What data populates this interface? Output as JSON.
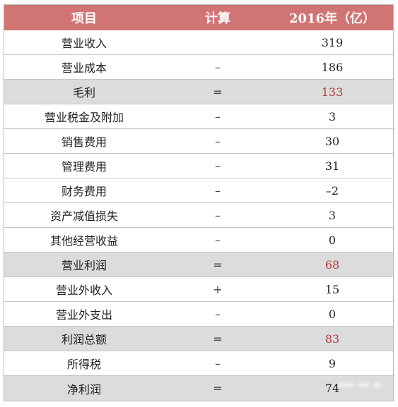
{
  "table": {
    "headers": [
      "项目",
      "计算",
      "2016年（亿）"
    ],
    "rows": [
      {
        "item": "营业收入",
        "calc": "",
        "value": "319",
        "subtotal": false
      },
      {
        "item": "营业成本",
        "calc": "–",
        "value": "186",
        "subtotal": false
      },
      {
        "item": "毛利",
        "calc": "=",
        "value": "133",
        "subtotal": true
      },
      {
        "item": "营业税金及附加",
        "calc": "–",
        "value": "3",
        "subtotal": false
      },
      {
        "item": "销售费用",
        "calc": "–",
        "value": "30",
        "subtotal": false
      },
      {
        "item": "管理费用",
        "calc": "–",
        "value": "31",
        "subtotal": false
      },
      {
        "item": "财务费用",
        "calc": "–",
        "value": "–2",
        "subtotal": false
      },
      {
        "item": "资产减值损失",
        "calc": "–",
        "value": "3",
        "subtotal": false
      },
      {
        "item": "其他经营收益",
        "calc": "–",
        "value": "0",
        "subtotal": false
      },
      {
        "item": "营业利润",
        "calc": "=",
        "value": "68",
        "subtotal": true
      },
      {
        "item": "营业外收入",
        "calc": "+",
        "value": "15",
        "subtotal": false
      },
      {
        "item": "营业外支出",
        "calc": "–",
        "value": "0",
        "subtotal": false
      },
      {
        "item": "利润总额",
        "calc": "=",
        "value": "83",
        "subtotal": true
      },
      {
        "item": "所得税",
        "calc": "–",
        "value": "9",
        "subtotal": false
      },
      {
        "item": "净利润",
        "calc": "=",
        "value": "74",
        "subtotal": true,
        "value_plain": true
      }
    ]
  },
  "colors": {
    "header_bg": "#d17474",
    "subtotal_bg": "#dcdcdc",
    "subtotal_value": "#b23a3a"
  }
}
